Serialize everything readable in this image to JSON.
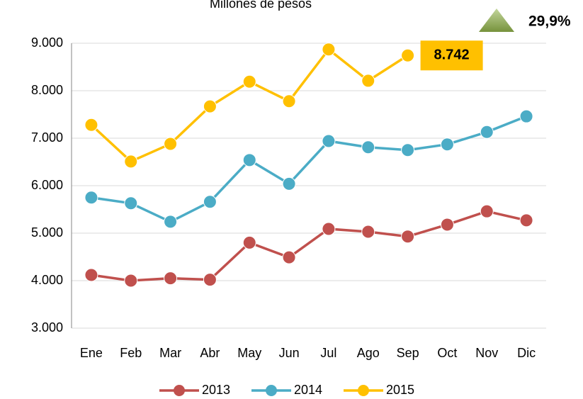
{
  "chart_data": {
    "type": "line",
    "title": "Millones de pesos",
    "categories": [
      "Ene",
      "Feb",
      "Mar",
      "Abr",
      "May",
      "Jun",
      "Jul",
      "Ago",
      "Sep",
      "Oct",
      "Nov",
      "Dic"
    ],
    "series": [
      {
        "name": "2013",
        "color": "#c0504d",
        "values": [
          4120,
          4000,
          4050,
          4020,
          4800,
          4490,
          5090,
          5030,
          4930,
          5180,
          5460,
          5270
        ]
      },
      {
        "name": "2014",
        "color": "#4bacc6",
        "values": [
          5750,
          5630,
          5240,
          5660,
          6540,
          6040,
          6940,
          6810,
          6750,
          6870,
          7130,
          7460
        ]
      },
      {
        "name": "2015",
        "color": "#ffc000",
        "values": [
          7280,
          6510,
          6880,
          7670,
          8190,
          7780,
          8870,
          8210,
          8742,
          null,
          null,
          null
        ],
        "value_labels": [
          null,
          null,
          null,
          null,
          null,
          null,
          null,
          null,
          "8.742",
          null,
          null,
          null
        ]
      }
    ],
    "ylim": [
      3000,
      9000
    ],
    "yticks": [
      {
        "value": 3000,
        "label": "3.000"
      },
      {
        "value": 4000,
        "label": "4.000"
      },
      {
        "value": 5000,
        "label": "5.000"
      },
      {
        "value": 6000,
        "label": "6.000"
      },
      {
        "value": 7000,
        "label": "7.000"
      },
      {
        "value": 8000,
        "label": "8.000"
      },
      {
        "value": 9000,
        "label": "9.000"
      }
    ],
    "grid": true,
    "legend": "bottom",
    "annotations": [
      {
        "text": "29,9%"
      }
    ]
  }
}
